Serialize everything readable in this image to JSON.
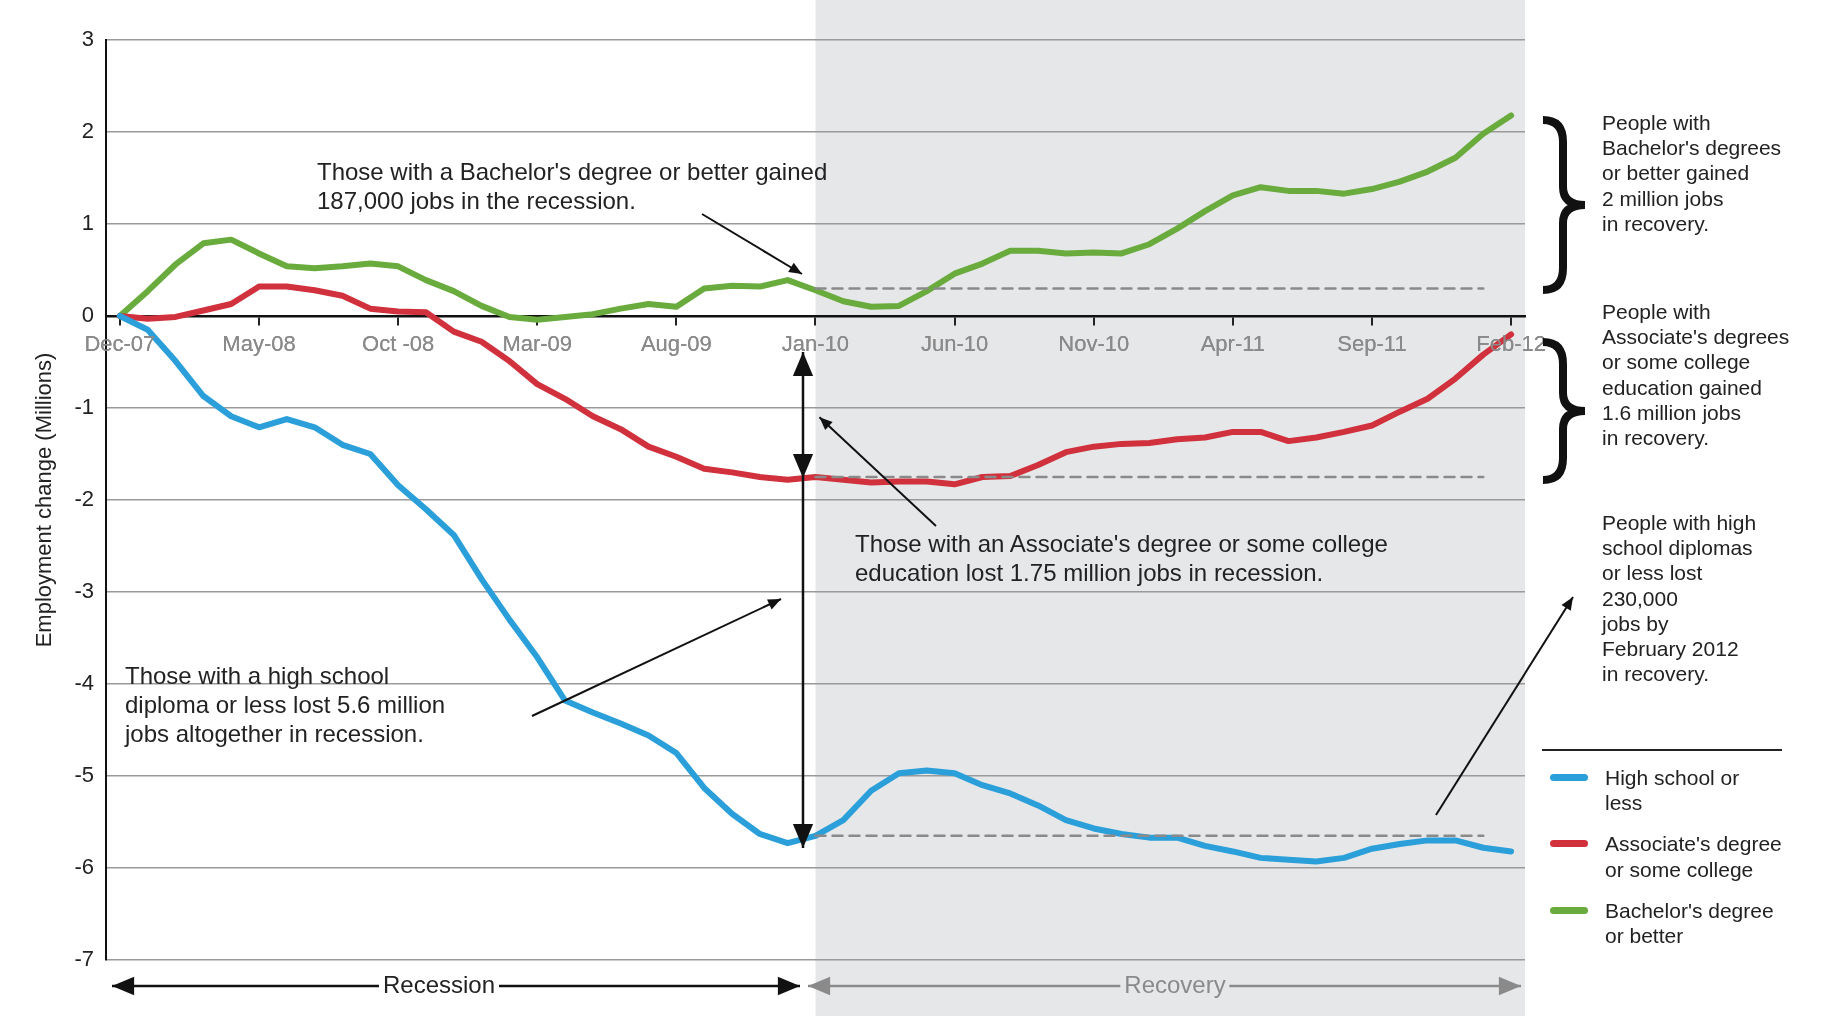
{
  "chart_data": {
    "type": "line",
    "ylabel": "Employment change (Millions)",
    "categories": [
      "Dec-07",
      null,
      null,
      null,
      null,
      "May-08",
      null,
      null,
      null,
      null,
      "Oct -08",
      null,
      null,
      null,
      null,
      "Mar-09",
      null,
      null,
      null,
      null,
      "Aug-09",
      null,
      null,
      null,
      null,
      "Jan-10",
      null,
      null,
      null,
      null,
      "Jun-10",
      null,
      null,
      null,
      null,
      "Nov-10",
      null,
      null,
      null,
      null,
      "Apr-11",
      null,
      null,
      null,
      null,
      "Sep-11",
      null,
      null,
      null,
      null,
      "Feb-12"
    ],
    "series": [
      {
        "name": "High school or less",
        "color": "#2b9fd9",
        "values": [
          0,
          -0.15,
          -0.49,
          -0.87,
          -1.09,
          -1.21,
          -1.12,
          -1.21,
          -1.4,
          -1.5,
          -1.84,
          -2.1,
          -2.38,
          -2.86,
          -3.3,
          -3.71,
          -4.18,
          -4.31,
          -4.43,
          -4.56,
          -4.75,
          -5.13,
          -5.41,
          -5.63,
          -5.73,
          -5.65,
          -5.48,
          -5.16,
          -4.97,
          -4.94,
          -4.97,
          -5.1,
          -5.19,
          -5.32,
          -5.48,
          -5.57,
          -5.63,
          -5.67,
          -5.67,
          -5.76,
          -5.82,
          -5.89,
          -5.91,
          -5.93,
          -5.89,
          -5.79,
          -5.74,
          -5.7,
          -5.7,
          -5.78,
          -5.82
        ]
      },
      {
        "name": "Associate's degree or some college",
        "color": "#d0313c",
        "values": [
          0,
          -0.03,
          -0.01,
          0.06,
          0.13,
          0.32,
          0.32,
          0.28,
          0.22,
          0.08,
          0.05,
          0.04,
          -0.17,
          -0.28,
          -0.49,
          -0.74,
          -0.9,
          -1.09,
          -1.23,
          -1.42,
          -1.53,
          -1.66,
          -1.7,
          -1.75,
          -1.78,
          -1.75,
          -1.78,
          -1.81,
          -1.8,
          -1.8,
          -1.83,
          -1.75,
          -1.74,
          -1.62,
          -1.48,
          -1.42,
          -1.39,
          -1.38,
          -1.34,
          -1.32,
          -1.26,
          -1.26,
          -1.36,
          -1.32,
          -1.26,
          -1.19,
          -1.04,
          -0.9,
          -0.68,
          -0.42,
          -0.2
        ]
      },
      {
        "name": "Bachelor's degree or better",
        "color": "#6aab3e",
        "values": [
          0,
          0.27,
          0.56,
          0.79,
          0.83,
          0.68,
          0.54,
          0.52,
          0.54,
          0.57,
          0.54,
          0.39,
          0.27,
          0.11,
          -0.01,
          -0.04,
          -0.01,
          0.02,
          0.08,
          0.13,
          0.1,
          0.3,
          0.33,
          0.32,
          0.39,
          0.28,
          0.16,
          0.1,
          0.11,
          0.27,
          0.46,
          0.57,
          0.71,
          0.71,
          0.68,
          0.69,
          0.68,
          0.78,
          0.95,
          1.14,
          1.31,
          1.4,
          1.36,
          1.36,
          1.33,
          1.38,
          1.46,
          1.57,
          1.72,
          1.98,
          2.18
        ]
      },
      {
        "type": "line",
        "line_style": "dashed",
        "color": "#8a8a8a",
        "values": [
          null,
          null,
          null,
          null,
          null,
          null,
          null,
          null,
          null,
          null,
          null,
          null,
          null,
          null,
          null,
          null,
          null,
          null,
          null,
          null,
          null,
          null,
          null,
          null,
          null,
          0.3,
          0.3,
          0.3,
          0.3,
          0.3,
          0.3,
          0.3,
          0.3,
          0.3,
          0.3,
          0.3,
          0.3,
          0.3,
          0.3,
          0.3,
          0.3,
          0.3,
          0.3,
          0.3,
          0.3,
          0.3,
          0.3,
          0.3,
          0.3,
          0.3,
          null
        ]
      },
      {
        "type": "line",
        "line_style": "dashed",
        "color": "#8a8a8a",
        "values": [
          null,
          null,
          null,
          null,
          null,
          null,
          null,
          null,
          null,
          null,
          null,
          null,
          null,
          null,
          null,
          null,
          null,
          null,
          null,
          null,
          null,
          null,
          null,
          null,
          null,
          -1.75,
          -1.75,
          -1.75,
          -1.75,
          -1.75,
          -1.75,
          -1.75,
          -1.75,
          -1.75,
          -1.75,
          -1.75,
          -1.75,
          -1.75,
          -1.75,
          -1.75,
          -1.75,
          -1.75,
          -1.75,
          -1.75,
          -1.75,
          -1.75,
          -1.75,
          -1.75,
          -1.75,
          -1.75,
          null
        ]
      },
      {
        "type": "line",
        "line_style": "dashed",
        "color": "#8a8a8a",
        "values": [
          null,
          null,
          null,
          null,
          null,
          null,
          null,
          null,
          null,
          null,
          null,
          null,
          null,
          null,
          null,
          null,
          null,
          null,
          null,
          null,
          null,
          null,
          null,
          null,
          null,
          -5.65,
          -5.65,
          -5.65,
          -5.65,
          -5.65,
          -5.65,
          -5.65,
          -5.65,
          -5.65,
          -5.65,
          -5.65,
          -5.65,
          -5.65,
          -5.65,
          -5.65,
          -5.65,
          -5.65,
          -5.65,
          -5.65,
          -5.65,
          -5.65,
          -5.65,
          -5.65,
          -5.65,
          -5.65,
          null
        ]
      }
    ],
    "ylim": [
      -7,
      3
    ],
    "yticks": [
      -7,
      -6,
      -5,
      -4,
      -3,
      -2,
      -1,
      0,
      1,
      2,
      3
    ],
    "grid": "y",
    "legend": "bottom right",
    "marker": "none",
    "bands": [
      {
        "axis": "x",
        "from": "Jan-10",
        "to": "Feb-12",
        "color": "#e6e7e9"
      }
    ],
    "annotations": [
      "Those with a Bachelor's degree or better gained\n187,000 jobs in the recession.",
      {
        "text": "Those with an Associate's degree or some college\neducation lost 1.75 million jobs in recession.",
        "x": "Jan-10",
        "y": -1.1
      },
      "Those with a high school\ndiploma or less lost 5.6 million\njobs altogether in recession.",
      "People with\nBachelor's degrees\nor better gained\n2 million jobs\nin recovery.",
      "People with\nAssociate's degrees\nor some college\neducation gained\n1.6 million jobs\nin recovery.",
      "People with high\nschool diplomas\nor less lost\n230,000\njobs by\nFebruary 2012\nin recovery.",
      "Recession",
      "Recovery"
    ]
  }
}
